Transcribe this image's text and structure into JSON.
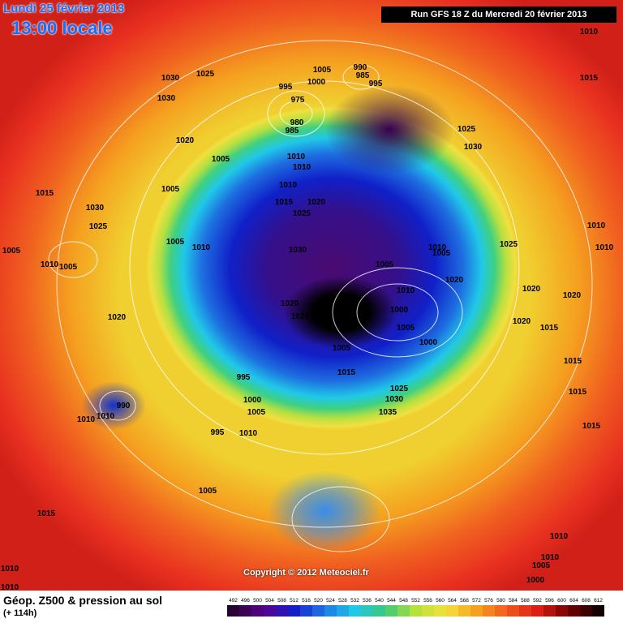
{
  "header": {
    "date": "Lundi 25 février 2013",
    "time": "13:00 locale",
    "run": "Run GFS 18 Z du Mercredi 20 février 2013"
  },
  "isobar_labels": [
    1010,
    1015,
    1030,
    1025,
    1030,
    1005,
    1000,
    990,
    985,
    995,
    995,
    975,
    980,
    985,
    1025,
    1030,
    1020,
    1005,
    1010,
    1010,
    1005,
    1010,
    1015,
    1020,
    1025,
    1015,
    1030,
    1025,
    1005,
    1010,
    1005,
    1005,
    1010,
    1030,
    1010,
    1005,
    1025,
    1010,
    1010,
    1005,
    1020,
    1010,
    1000,
    1020,
    1020,
    1020,
    1020,
    1020,
    1005,
    1000,
    1020,
    1015,
    1005,
    1015,
    1015,
    995,
    1025,
    1030,
    1015,
    1000,
    990,
    1005,
    1035,
    1010,
    1010,
    995,
    1010,
    1015,
    1005,
    1015,
    1010,
    1010,
    1010,
    1005,
    1000,
    1010
  ],
  "footer": {
    "copyright": "Copyright © 2012 Meteociel.fr",
    "legend_title": "Géop. Z500 & pression au sol",
    "lead_time": "(+ 114h)",
    "scale": [
      492,
      496,
      500,
      504,
      508,
      512,
      516,
      520,
      524,
      528,
      532,
      536,
      540,
      544,
      548,
      552,
      556,
      560,
      564,
      568,
      572,
      576,
      580,
      584,
      588,
      592,
      596,
      600,
      604,
      608,
      612
    ]
  }
}
